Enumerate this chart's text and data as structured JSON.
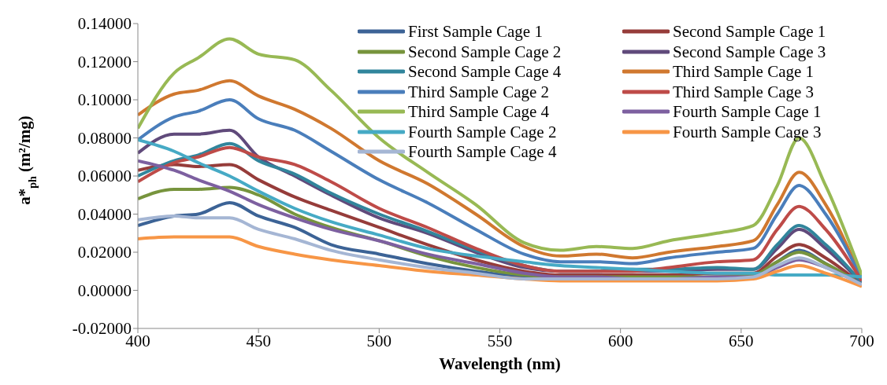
{
  "chart_data": {
    "type": "line",
    "xlabel": "Wavelength (nm)",
    "ylabel": "a*$_{ph}$ (m²/mg)",
    "x": [
      400,
      415,
      425,
      438,
      450,
      465,
      480,
      500,
      520,
      540,
      560,
      575,
      590,
      605,
      620,
      640,
      655,
      665,
      674,
      685,
      700
    ],
    "xlim": [
      400,
      700
    ],
    "xticks": [
      400,
      450,
      500,
      550,
      600,
      650,
      700
    ],
    "ylim": [
      -0.02,
      0.14
    ],
    "yticks": [
      {
        "value": -0.02,
        "label": "-0.02000"
      },
      {
        "value": 0,
        "label": "0.00000"
      },
      {
        "value": 0.02,
        "label": "0.02000"
      },
      {
        "value": 0.04,
        "label": "0.04000"
      },
      {
        "value": 0.06,
        "label": "0.06000"
      },
      {
        "value": 0.08,
        "label": "0.08000"
      },
      {
        "value": 0.1,
        "label": "0.10000"
      },
      {
        "value": 0.12,
        "label": "0.12000"
      },
      {
        "value": 0.14,
        "label": "0.14000"
      }
    ],
    "grid": false,
    "legend": "top right",
    "marker": "none",
    "line_style": "solid",
    "series": [
      {
        "name": "First Sample Cage 1",
        "color": "#3c6396",
        "values": [
          0.034,
          0.039,
          0.04,
          0.046,
          0.039,
          0.033,
          0.024,
          0.019,
          0.014,
          0.01,
          0.007,
          0.006,
          0.006,
          0.006,
          0.006,
          0.007,
          0.007,
          0.015,
          0.021,
          0.014,
          0.003
        ]
      },
      {
        "name": "Second Sample Cage 1",
        "color": "#963c3a",
        "values": [
          0.063,
          0.066,
          0.065,
          0.066,
          0.058,
          0.049,
          0.042,
          0.033,
          0.024,
          0.016,
          0.01,
          0.008,
          0.008,
          0.008,
          0.008,
          0.009,
          0.009,
          0.018,
          0.024,
          0.017,
          0.003
        ]
      },
      {
        "name": "Second Sample Cage 2",
        "color": "#77943d",
        "values": [
          0.048,
          0.053,
          0.053,
          0.054,
          0.05,
          0.04,
          0.033,
          0.026,
          0.018,
          0.012,
          0.008,
          0.007,
          0.007,
          0.007,
          0.007,
          0.007,
          0.008,
          0.015,
          0.02,
          0.014,
          0.003
        ]
      },
      {
        "name": "Second Sample Cage 3",
        "color": "#604a7b",
        "values": [
          0.072,
          0.082,
          0.082,
          0.084,
          0.07,
          0.06,
          0.05,
          0.038,
          0.03,
          0.02,
          0.012,
          0.01,
          0.01,
          0.01,
          0.01,
          0.011,
          0.011,
          0.022,
          0.032,
          0.022,
          0.004
        ]
      },
      {
        "name": "Second Sample Cage 4",
        "color": "#31859c",
        "values": [
          0.06,
          0.068,
          0.071,
          0.077,
          0.068,
          0.061,
          0.051,
          0.04,
          0.031,
          0.021,
          0.013,
          0.01,
          0.01,
          0.011,
          0.011,
          0.012,
          0.011,
          0.024,
          0.034,
          0.024,
          0.004
        ]
      },
      {
        "name": "Third Sample Cage 1",
        "color": "#d0782f",
        "values": [
          0.092,
          0.103,
          0.105,
          0.11,
          0.102,
          0.095,
          0.085,
          0.068,
          0.056,
          0.04,
          0.023,
          0.018,
          0.019,
          0.017,
          0.02,
          0.023,
          0.026,
          0.045,
          0.062,
          0.045,
          0.006
        ]
      },
      {
        "name": "Third Sample Cage 2",
        "color": "#4a7ebb",
        "values": [
          0.079,
          0.091,
          0.094,
          0.1,
          0.09,
          0.084,
          0.073,
          0.058,
          0.046,
          0.032,
          0.019,
          0.015,
          0.015,
          0.014,
          0.017,
          0.02,
          0.022,
          0.04,
          0.055,
          0.04,
          0.006
        ]
      },
      {
        "name": "Third Sample Cage 3",
        "color": "#be4b48",
        "values": [
          0.057,
          0.067,
          0.07,
          0.075,
          0.07,
          0.066,
          0.057,
          0.043,
          0.033,
          0.022,
          0.013,
          0.01,
          0.01,
          0.01,
          0.012,
          0.015,
          0.016,
          0.032,
          0.044,
          0.032,
          0.005
        ]
      },
      {
        "name": "Third Sample Cage 4",
        "color": "#98b954",
        "values": [
          0.085,
          0.114,
          0.122,
          0.132,
          0.124,
          0.121,
          0.105,
          0.08,
          0.062,
          0.045,
          0.025,
          0.021,
          0.023,
          0.022,
          0.026,
          0.03,
          0.034,
          0.055,
          0.08,
          0.055,
          0.008
        ]
      },
      {
        "name": "Fourth Sample Cage 1",
        "color": "#7d60a0",
        "values": [
          0.068,
          0.063,
          0.058,
          0.052,
          0.045,
          0.038,
          0.032,
          0.026,
          0.019,
          0.014,
          0.009,
          0.007,
          0.007,
          0.006,
          0.006,
          0.007,
          0.007,
          0.012,
          0.016,
          0.012,
          0.003
        ]
      },
      {
        "name": "Fourth Sample Cage 2",
        "color": "#46aac5",
        "values": [
          0.079,
          0.073,
          0.067,
          0.06,
          0.052,
          0.043,
          0.036,
          0.029,
          0.022,
          0.018,
          0.015,
          0.013,
          0.012,
          0.011,
          0.01,
          0.009,
          0.009,
          0.008,
          0.008,
          0.008,
          0.007
        ]
      },
      {
        "name": "Fourth Sample Cage 3",
        "color": "#f79646",
        "values": [
          0.027,
          0.028,
          0.028,
          0.028,
          0.023,
          0.019,
          0.016,
          0.013,
          0.01,
          0.008,
          0.006,
          0.005,
          0.005,
          0.005,
          0.005,
          0.005,
          0.006,
          0.01,
          0.013,
          0.009,
          0.002
        ]
      },
      {
        "name": "Fourth Sample Cage 4",
        "color": "#a5b6d4",
        "values": [
          0.037,
          0.039,
          0.038,
          0.038,
          0.032,
          0.027,
          0.021,
          0.016,
          0.012,
          0.009,
          0.006,
          0.006,
          0.006,
          0.006,
          0.006,
          0.006,
          0.007,
          0.013,
          0.017,
          0.012,
          0.003
        ]
      }
    ]
  }
}
